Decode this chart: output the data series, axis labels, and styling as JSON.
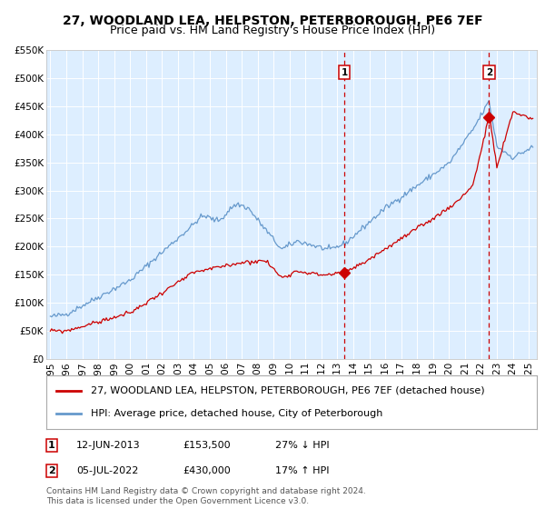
{
  "title": "27, WOODLAND LEA, HELPSTON, PETERBOROUGH, PE6 7EF",
  "subtitle": "Price paid vs. HM Land Registry's House Price Index (HPI)",
  "ylabel_ticks": [
    "£0",
    "£50K",
    "£100K",
    "£150K",
    "£200K",
    "£250K",
    "£300K",
    "£350K",
    "£400K",
    "£450K",
    "£500K",
    "£550K"
  ],
  "ylim": [
    0,
    550000
  ],
  "xlim_start": 1994.75,
  "xlim_end": 2025.5,
  "vline1_x": 2013.44,
  "vline2_x": 2022.5,
  "marker1_price_red": 153500,
  "marker2_price_red": 430000,
  "legend_line1": "27, WOODLAND LEA, HELPSTON, PETERBOROUGH, PE6 7EF (detached house)",
  "legend_line2": "HPI: Average price, detached house, City of Peterborough",
  "sale1_date": "12-JUN-2013",
  "sale1_price": "£153,500",
  "sale1_hpi": "27% ↓ HPI",
  "sale2_date": "05-JUL-2022",
  "sale2_price": "£430,000",
  "sale2_hpi": "17% ↑ HPI",
  "footer": "Contains HM Land Registry data © Crown copyright and database right 2024.\nThis data is licensed under the Open Government Licence v3.0.",
  "red_color": "#cc0000",
  "blue_color": "#6699cc",
  "bg_plot_color": "#ddeeff",
  "grid_color": "#ffffff",
  "title_fontsize": 10,
  "subtitle_fontsize": 9,
  "tick_fontsize": 7.5,
  "legend_fontsize": 8,
  "footer_fontsize": 6.5
}
